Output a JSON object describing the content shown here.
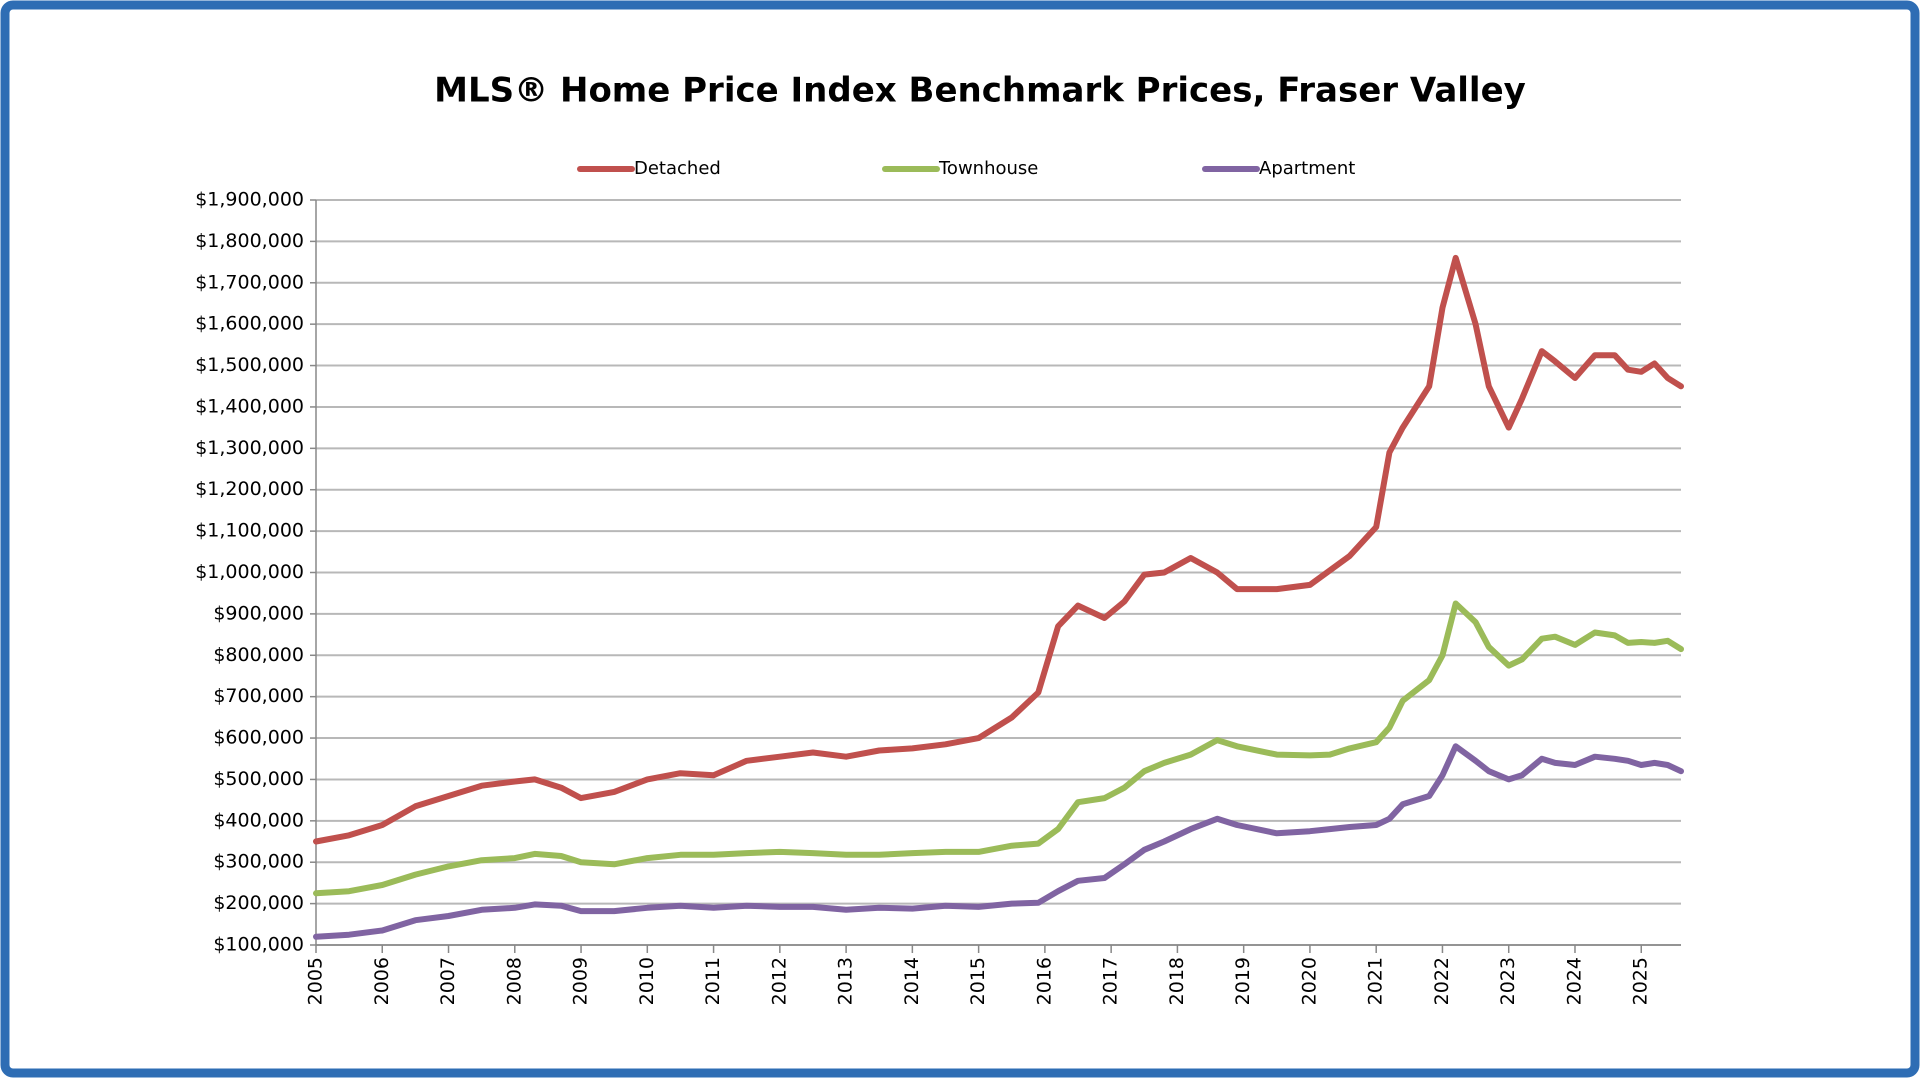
{
  "chart_data": {
    "type": "line",
    "title": "MLS® Home Price Index Benchmark Prices, Fraser Valley",
    "x": [
      2005,
      2005.5,
      2006,
      2006.5,
      2007,
      2007.5,
      2008,
      2008.3,
      2008.7,
      2009,
      2009.5,
      2010,
      2010.5,
      2011,
      2011.5,
      2012,
      2012.5,
      2013,
      2013.5,
      2014,
      2014.5,
      2015,
      2015.5,
      2015.9,
      2016.2,
      2016.5,
      2016.9,
      2017.2,
      2017.5,
      2017.8,
      2018.2,
      2018.6,
      2018.9,
      2019.5,
      2020,
      2020.3,
      2020.6,
      2021,
      2021.2,
      2021.4,
      2021.8,
      2022,
      2022.2,
      2022.5,
      2022.7,
      2023,
      2023.2,
      2023.5,
      2023.7,
      2024,
      2024.3,
      2024.6,
      2024.8,
      2025,
      2025.2,
      2025.4,
      2025.6
    ],
    "series": [
      {
        "name": "Detached",
        "color": "#c0504d",
        "values": [
          350000,
          365000,
          390000,
          435000,
          460000,
          485000,
          495000,
          500000,
          480000,
          455000,
          470000,
          500000,
          515000,
          510000,
          545000,
          555000,
          565000,
          555000,
          570000,
          575000,
          585000,
          600000,
          650000,
          710000,
          870000,
          920000,
          890000,
          930000,
          995000,
          1000000,
          1035000,
          1000000,
          960000,
          960000,
          970000,
          1005000,
          1040000,
          1110000,
          1290000,
          1350000,
          1450000,
          1640000,
          1760000,
          1600000,
          1450000,
          1350000,
          1420000,
          1535000,
          1510000,
          1470000,
          1525000,
          1525000,
          1490000,
          1485000,
          1505000,
          1470000,
          1450000
        ]
      },
      {
        "name": "Townhouse",
        "color": "#9bbb59",
        "values": [
          225000,
          230000,
          245000,
          270000,
          290000,
          305000,
          310000,
          320000,
          315000,
          300000,
          295000,
          310000,
          318000,
          318000,
          322000,
          325000,
          322000,
          318000,
          318000,
          322000,
          325000,
          325000,
          340000,
          345000,
          380000,
          445000,
          455000,
          480000,
          520000,
          540000,
          560000,
          595000,
          580000,
          560000,
          558000,
          560000,
          575000,
          590000,
          625000,
          690000,
          740000,
          800000,
          925000,
          880000,
          820000,
          775000,
          790000,
          840000,
          845000,
          825000,
          855000,
          848000,
          830000,
          832000,
          830000,
          835000,
          815000
        ]
      },
      {
        "name": "Apartment",
        "color": "#8064a2",
        "values": [
          120000,
          125000,
          135000,
          160000,
          170000,
          185000,
          190000,
          198000,
          195000,
          182000,
          182000,
          190000,
          195000,
          190000,
          195000,
          192000,
          192000,
          185000,
          190000,
          188000,
          195000,
          192000,
          200000,
          202000,
          230000,
          255000,
          262000,
          295000,
          330000,
          350000,
          380000,
          405000,
          390000,
          370000,
          375000,
          380000,
          385000,
          390000,
          405000,
          440000,
          460000,
          510000,
          580000,
          545000,
          520000,
          500000,
          510000,
          550000,
          540000,
          535000,
          555000,
          550000,
          545000,
          535000,
          540000,
          535000,
          520000
        ]
      }
    ],
    "xlim": [
      2005,
      2025.6
    ],
    "xticks": [
      2005,
      2006,
      2007,
      2008,
      2009,
      2010,
      2011,
      2012,
      2013,
      2014,
      2015,
      2016,
      2017,
      2018,
      2019,
      2020,
      2021,
      2022,
      2023,
      2024,
      2025
    ],
    "ylim": [
      100000,
      1900000
    ],
    "yticks": [
      {
        "value": 100000,
        "label": "$100,000"
      },
      {
        "value": 200000,
        "label": "$200,000"
      },
      {
        "value": 300000,
        "label": "$300,000"
      },
      {
        "value": 400000,
        "label": "$400,000"
      },
      {
        "value": 500000,
        "label": "$500,000"
      },
      {
        "value": 600000,
        "label": "$600,000"
      },
      {
        "value": 700000,
        "label": "$700,000"
      },
      {
        "value": 800000,
        "label": "$800,000"
      },
      {
        "value": 900000,
        "label": "$900,000"
      },
      {
        "value": 1000000,
        "label": "$1,000,000"
      },
      {
        "value": 1100000,
        "label": "$1,100,000"
      },
      {
        "value": 1200000,
        "label": "$1,200,000"
      },
      {
        "value": 1300000,
        "label": "$1,300,000"
      },
      {
        "value": 1400000,
        "label": "$1,400,000"
      },
      {
        "value": 1500000,
        "label": "$1,500,000"
      },
      {
        "value": 1600000,
        "label": "$1,600,000"
      },
      {
        "value": 1700000,
        "label": "$1,700,000"
      },
      {
        "value": 1800000,
        "label": "$1,800,000"
      },
      {
        "value": 1900000,
        "label": "$1,900,000"
      }
    ],
    "grid": true,
    "legend": "top"
  }
}
